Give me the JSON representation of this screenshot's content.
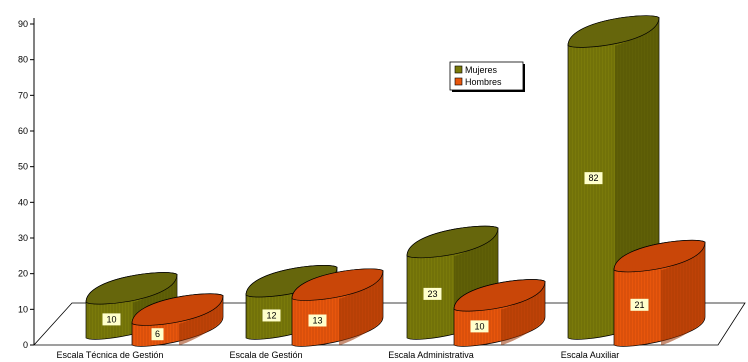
{
  "chart_data": {
    "type": "bar",
    "categories": [
      "Escala Técnica de Gestión",
      "Escala de Gestión",
      "Escala Administrativa",
      "Escala Auxiliar"
    ],
    "series": [
      {
        "name": "Mujeres",
        "values": [
          10,
          12,
          23,
          82
        ]
      },
      {
        "name": "Hombres",
        "values": [
          6,
          13,
          10,
          21
        ]
      }
    ],
    "ylim": [
      0,
      90
    ],
    "y_ticks": [
      0,
      10,
      20,
      30,
      40,
      50,
      60,
      70,
      80,
      90
    ],
    "legend_position": "top-right",
    "grid": false,
    "colors": {
      "Mujeres": {
        "front": "#7a7a0a",
        "top": "#66660c",
        "dark": "#4a4a05",
        "label_bg": "#ffffcc"
      },
      "Hombres": {
        "front": "#e8560c",
        "top": "#c94608",
        "dark": "#9b3304",
        "label_bg": "#ffffcc"
      }
    }
  }
}
